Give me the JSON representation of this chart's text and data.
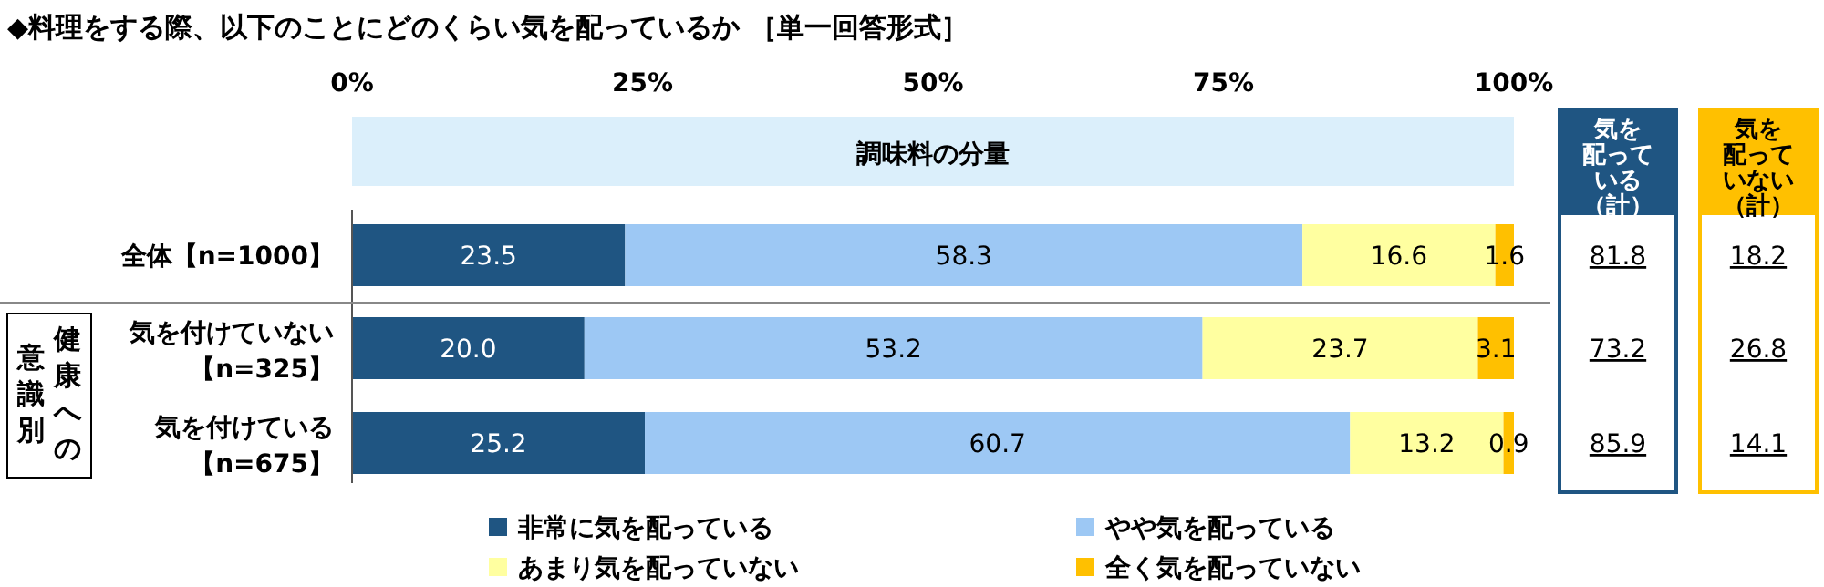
{
  "chart_data": {
    "type": "bar",
    "orientation": "horizontal",
    "stacked": true,
    "legend": "bottom",
    "title": "◆料理をする際、以下のことにどのくらい気を配っているか ［単一回答形式］",
    "categories": [
      "全体【n=1000】",
      "気を付けていない【n=325】",
      "気を付けている【n=675】"
    ],
    "series": [
      {
        "name": "非常に気を配っている",
        "color": "#1f5582",
        "values": [
          23.5,
          20.0,
          25.2
        ],
        "value_labels": [
          "23.5",
          "20.0",
          "25.2"
        ]
      },
      {
        "name": "やや気を配っている",
        "color": "#9dc8f4",
        "values": [
          58.3,
          53.2,
          60.7
        ],
        "value_labels": [
          "58.3",
          "53.2",
          "60.7"
        ]
      },
      {
        "name": "あまり気を配っていない",
        "color": "#ffffa0",
        "values": [
          16.6,
          23.7,
          13.2
        ],
        "value_labels": [
          "16.6",
          "23.7",
          "13.2"
        ]
      },
      {
        "name": "全く気を配っていない",
        "color": "#ffc000",
        "values": [
          1.6,
          3.1,
          0.9
        ],
        "value_labels": [
          "1.6",
          "3.1",
          "0.9"
        ]
      }
    ],
    "xlim": [
      0,
      100
    ],
    "xticks": [
      {
        "value": 0,
        "label": "0%"
      },
      {
        "value": 25,
        "label": "25%"
      },
      {
        "value": 50,
        "label": "50%"
      },
      {
        "value": 75,
        "label": "75%"
      },
      {
        "value": 100,
        "label": "100%"
      }
    ],
    "annotations": [
      "調味料の分量",
      "健康への",
      "意識別",
      "気を配っている（計）",
      "81.8",
      "73.2",
      "85.9",
      "気を配っていない（計）",
      "18.2",
      "26.8",
      "14.1"
    ]
  }
}
